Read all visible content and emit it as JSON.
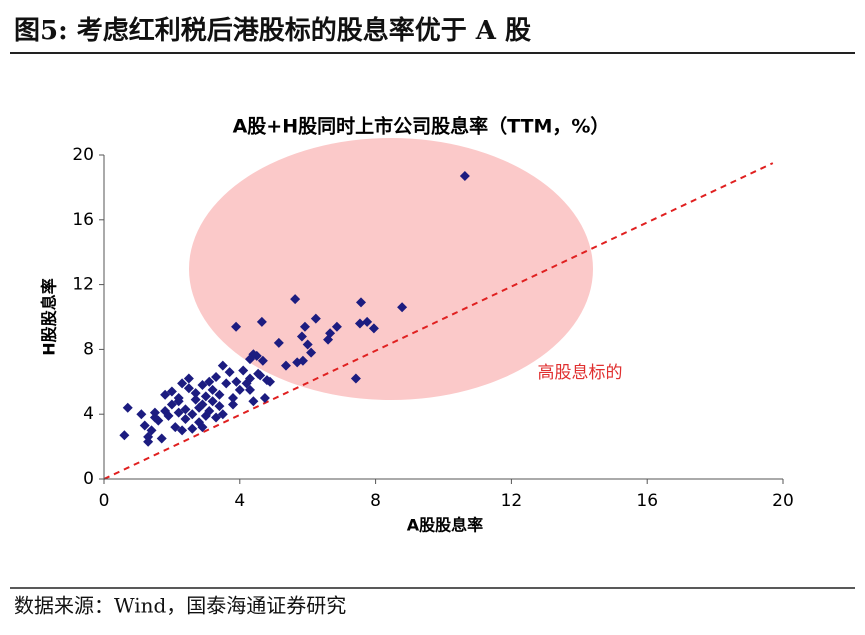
{
  "header": {
    "title": "图5: 考虑红利税后港股标的股息率优于 A 股"
  },
  "chart_data": {
    "type": "scatter",
    "title": "A股+H股同时上市公司股息率（TTM，%）",
    "x_label": "A股股息率",
    "y_label": "H股股息率",
    "annotation": "高股息标的",
    "color": "#1c1c80",
    "x": [
      10.63,
      8.78,
      7.57,
      5.63,
      7.54,
      7.95,
      7.75,
      6.24,
      5.92,
      6.86,
      6.66,
      6.6,
      5.83,
      6.0,
      5.15,
      7.42,
      5.36,
      5.69,
      5.86,
      6.1,
      3.89,
      4.65,
      4.5,
      4.4,
      4.68,
      4.54,
      4.89,
      4.74,
      4.3,
      0.6,
      0.7,
      1.1,
      1.2,
      1.3,
      1.3,
      1.4,
      1.5,
      1.6,
      1.7,
      1.8,
      1.8,
      1.9,
      2.0,
      2.0,
      2.1,
      2.2,
      2.2,
      2.3,
      2.4,
      2.4,
      2.5,
      2.5,
      2.6,
      2.6,
      2.7,
      2.7,
      2.8,
      2.8,
      2.9,
      2.9,
      3.0,
      3.0,
      3.1,
      3.1,
      3.2,
      3.2,
      3.3,
      3.3,
      3.4,
      3.4,
      3.5,
      3.6,
      3.7,
      3.8,
      3.8,
      3.9,
      4.0,
      4.1,
      4.2,
      4.3,
      4.4,
      4.6,
      4.8,
      4.3,
      2.2,
      1.5,
      2.9,
      3.5,
      2.3
    ],
    "values": [
      18.7,
      10.6,
      10.9,
      11.1,
      9.6,
      9.3,
      9.7,
      9.9,
      9.4,
      9.4,
      9.0,
      8.6,
      8.8,
      8.3,
      8.4,
      6.2,
      7.0,
      7.2,
      7.3,
      7.8,
      9.4,
      9.7,
      7.6,
      7.7,
      7.3,
      6.5,
      6.0,
      5.0,
      5.5,
      2.7,
      4.4,
      4.0,
      3.3,
      2.6,
      2.3,
      3.0,
      4.1,
      3.6,
      2.5,
      4.2,
      5.2,
      3.9,
      4.6,
      5.4,
      3.2,
      4.8,
      5.0,
      3.0,
      4.3,
      3.7,
      5.6,
      6.2,
      4.0,
      3.1,
      4.9,
      5.3,
      4.4,
      3.5,
      5.8,
      4.6,
      5.1,
      3.9,
      6.0,
      4.2,
      5.5,
      4.8,
      3.8,
      6.3,
      5.2,
      4.5,
      7.0,
      5.9,
      6.6,
      5.0,
      4.6,
      6.0,
      5.5,
      6.7,
      5.9,
      6.2,
      4.8,
      6.4,
      6.1,
      7.4,
      4.1,
      3.8,
      3.2,
      4.0,
      5.9
    ],
    "xlim": [
      0,
      20
    ],
    "ylim": [
      0,
      20
    ],
    "xticks": [
      0,
      4,
      8,
      12,
      16,
      20
    ],
    "yticks": [
      0,
      4,
      8,
      12,
      16,
      20
    ]
  },
  "source": {
    "text": "数据来源：Wind，国泰海通证券研究"
  }
}
